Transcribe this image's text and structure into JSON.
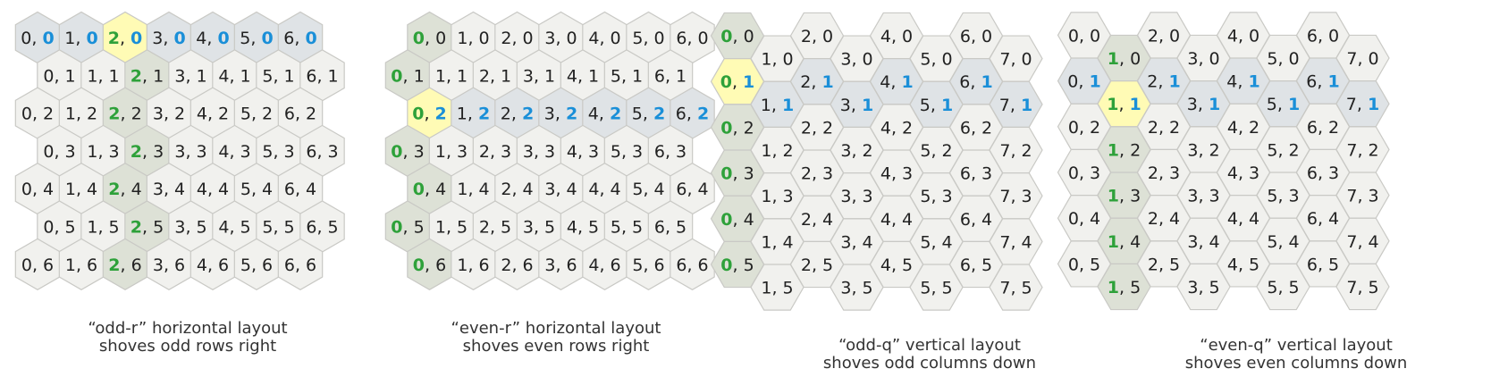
{
  "colors": {
    "cell_fill": "#f1f1ee",
    "cell_stroke": "#c9c9c5",
    "highlight_fill": "#fffbb5",
    "col_green_fill": "#dde1d6",
    "row_blue_fill": "#dfe3e6",
    "green_text": "#2ea13a",
    "blue_text": "#1a8fd8",
    "text": "#222222"
  },
  "diagrams": [
    {
      "id": "odd-r",
      "orientation": "pointy",
      "cols": 7,
      "rows": 7,
      "highlight": [
        2,
        0
      ],
      "green_col": 2,
      "blue_row": 0,
      "caption_line1": "“odd-r” horizontal layout",
      "caption_line2": "shoves odd rows right"
    },
    {
      "id": "even-r",
      "orientation": "pointy",
      "cols": 7,
      "rows": 7,
      "highlight": [
        0,
        2
      ],
      "green_col": 0,
      "blue_row": 2,
      "caption_line1": "“even-r” horizontal layout",
      "caption_line2": "shoves even rows right"
    },
    {
      "id": "odd-q",
      "orientation": "flat",
      "cols": 8,
      "rows": 6,
      "highlight": [
        0,
        1
      ],
      "green_col": 0,
      "blue_row": 1,
      "caption_line1": "“odd-q” vertical layout",
      "caption_line2": "shoves odd columns down"
    },
    {
      "id": "even-q",
      "orientation": "flat",
      "cols": 8,
      "rows": 6,
      "highlight": [
        1,
        1
      ],
      "green_col": 1,
      "blue_row": 1,
      "caption_line1": "“even-q” vertical layout",
      "caption_line2": "shoves even columns down"
    }
  ]
}
